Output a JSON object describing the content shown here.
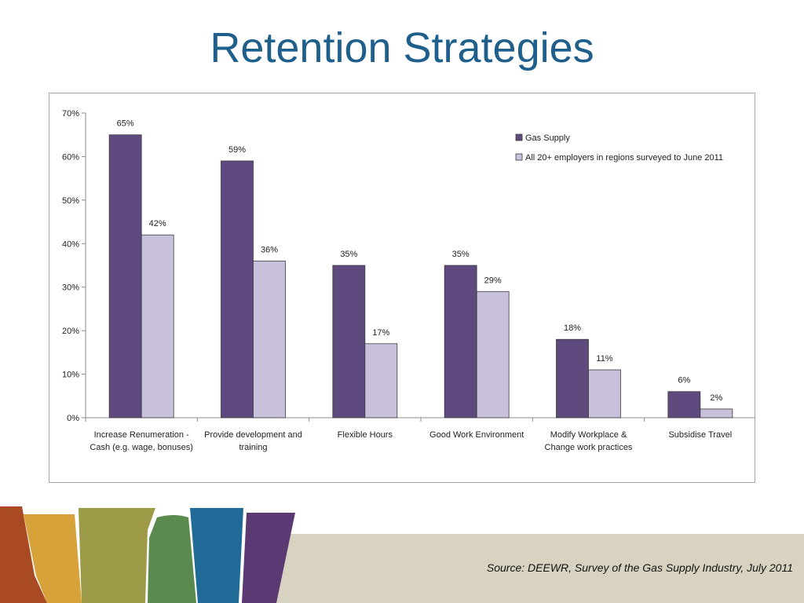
{
  "slide": {
    "title": "Retention Strategies",
    "source": "Source: DEEWR, Survey of the Gas Supply Industry, July 2011"
  },
  "colors": {
    "title": "#1f5f8b",
    "series_dark": "#5e4a7e",
    "series_light": "#c9c0dc",
    "footer_band": "#d8d3c0",
    "footer_stripes": [
      "#a94a25",
      "#d8a23a",
      "#9d9b47",
      "#5a8a4e",
      "#1f6a96",
      "#5b3a74"
    ]
  },
  "chart_data": {
    "type": "bar",
    "categories": [
      [
        "Increase Renumeration -",
        "Cash (e.g. wage, bonuses)"
      ],
      [
        "Provide development and",
        "training"
      ],
      [
        "Flexible Hours"
      ],
      [
        "Good Work Environment"
      ],
      [
        "Modify Workplace &",
        "Change work practices"
      ],
      [
        "Subsidise Travel"
      ]
    ],
    "series": [
      {
        "name": "Gas Supply",
        "values": [
          65,
          59,
          35,
          35,
          18,
          6
        ],
        "labels": [
          "65%",
          "59%",
          "35%",
          "35%",
          "18%",
          "6%"
        ]
      },
      {
        "name": "All 20+ employers in regions surveyed to June 2011",
        "values": [
          42,
          36,
          17,
          29,
          11,
          2
        ],
        "labels": [
          "42%",
          "36%",
          "17%",
          "29%",
          "11%",
          "2%"
        ]
      }
    ],
    "yticks": [
      "0%",
      "10%",
      "20%",
      "30%",
      "40%",
      "50%",
      "60%",
      "70%"
    ],
    "ylim": [
      0,
      70
    ],
    "grid": false,
    "legend_position": "top-right"
  }
}
